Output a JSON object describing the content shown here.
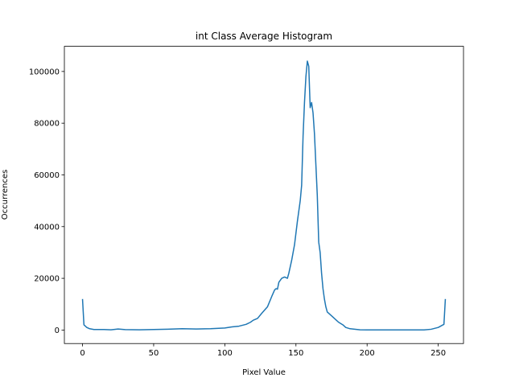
{
  "chart_data": {
    "type": "line",
    "title": "int Class Average Histogram",
    "xlabel": "Pixel Value",
    "ylabel": "Occurrences",
    "x": [
      0,
      1,
      3,
      5,
      8,
      15,
      20,
      25,
      30,
      40,
      50,
      60,
      70,
      80,
      90,
      100,
      105,
      110,
      115,
      118,
      120,
      123,
      126,
      130,
      133,
      135,
      136,
      137,
      138,
      140,
      142,
      144,
      145,
      147,
      149,
      151,
      153,
      154,
      155,
      156,
      157,
      158,
      159,
      160,
      161,
      162,
      163,
      164,
      165,
      166,
      167,
      168,
      169,
      170,
      171,
      172,
      175,
      178,
      180,
      183,
      185,
      188,
      195,
      200,
      220,
      240,
      245,
      250,
      254,
      255
    ],
    "series": [
      {
        "name": "int",
        "color": "#1f77b4",
        "values": [
          12000,
          2000,
          1000,
          500,
          200,
          200,
          100,
          400,
          150,
          100,
          200,
          300,
          500,
          400,
          500,
          800,
          1200,
          1500,
          2200,
          3000,
          3800,
          4500,
          6500,
          9000,
          13000,
          15500,
          16000,
          15800,
          18500,
          20000,
          20500,
          20000,
          22000,
          27000,
          33000,
          42000,
          50000,
          56000,
          75000,
          88000,
          98000,
          104000,
          102000,
          86000,
          88000,
          84000,
          76000,
          64000,
          52000,
          34000,
          30000,
          22000,
          16000,
          12000,
          9000,
          7000,
          5500,
          4000,
          3000,
          2000,
          1000,
          500,
          100,
          50,
          50,
          50,
          300,
          1000,
          2200,
          12000
        ]
      }
    ],
    "xlim": [
      -12.75,
      267.75
    ],
    "ylim": [
      -5225,
      109725
    ],
    "xticks": [
      0,
      50,
      100,
      150,
      200,
      250
    ],
    "yticks": [
      0,
      20000,
      40000,
      60000,
      80000,
      100000
    ]
  }
}
